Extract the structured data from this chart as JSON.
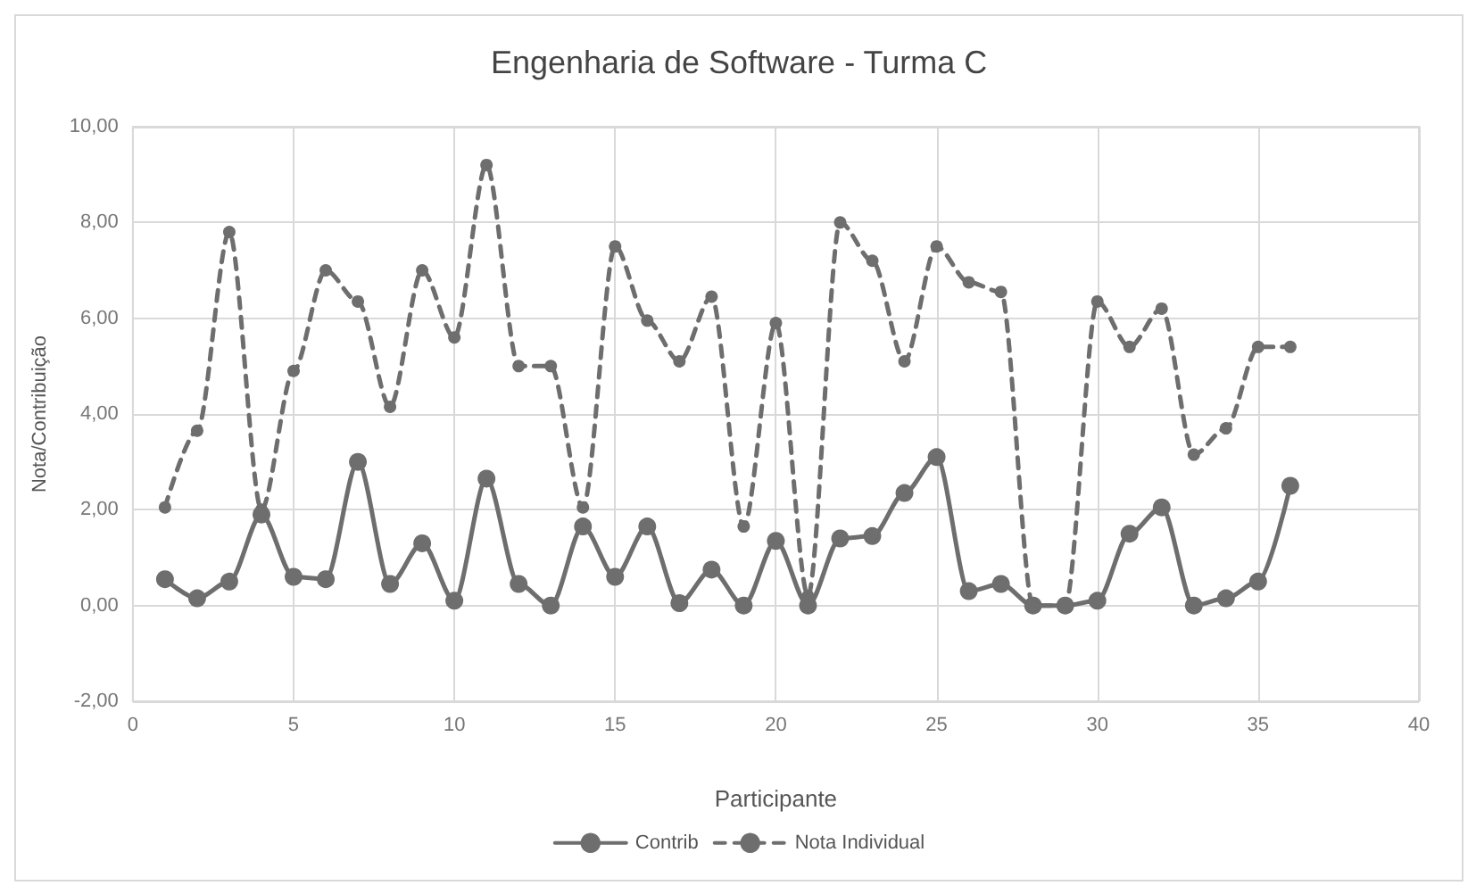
{
  "chart_data": {
    "type": "line",
    "title": "Engenharia de Software - Turma C",
    "xlabel": "Participante",
    "ylabel": "Nota/Contribuição",
    "x": [
      1,
      2,
      3,
      4,
      5,
      6,
      7,
      8,
      9,
      10,
      11,
      12,
      13,
      14,
      15,
      16,
      17,
      18,
      19,
      20,
      21,
      22,
      23,
      24,
      25,
      26,
      27,
      28,
      29,
      30,
      31,
      32,
      33,
      34,
      35,
      36
    ],
    "series": [
      {
        "name": "Contrib",
        "color": "#6e6e6e",
        "line_style": "solid",
        "values": [
          0.55,
          0.15,
          0.5,
          1.9,
          0.6,
          0.55,
          3.0,
          0.45,
          1.3,
          0.1,
          2.65,
          0.45,
          0,
          1.65,
          0.6,
          1.65,
          0.05,
          0.75,
          0,
          1.35,
          0,
          1.4,
          1.45,
          2.35,
          3.1,
          0.3,
          0.45,
          0,
          0,
          0.1,
          1.5,
          2.05,
          0,
          0.15,
          0.5,
          2.5
        ]
      },
      {
        "name": "Nota Individual",
        "color": "#6e6e6e",
        "line_style": "dashed",
        "values": [
          2.05,
          3.65,
          7.8,
          2.0,
          4.9,
          7.0,
          6.35,
          4.15,
          7.0,
          5.6,
          9.2,
          5.0,
          5.0,
          2.05,
          7.5,
          5.95,
          5.1,
          6.45,
          1.65,
          5.9,
          0.2,
          8.0,
          7.2,
          5.1,
          7.5,
          6.75,
          6.55,
          0,
          0,
          6.35,
          5.4,
          6.2,
          3.15,
          3.7,
          5.4,
          5.4
        ]
      }
    ],
    "xlim": [
      0,
      40
    ],
    "xticks": [
      0,
      5,
      10,
      15,
      20,
      25,
      30,
      35,
      40
    ],
    "ylim": [
      -2,
      10
    ],
    "yticks": [
      {
        "value": -2,
        "label": "-2,00"
      },
      {
        "value": 0,
        "label": "0,00"
      },
      {
        "value": 2,
        "label": "2,00"
      },
      {
        "value": 4,
        "label": "4,00"
      },
      {
        "value": 6,
        "label": "6,00"
      },
      {
        "value": 8,
        "label": "8,00"
      },
      {
        "value": 10,
        "label": "10,00"
      }
    ],
    "grid": true,
    "legend": "bottom",
    "marker": "circle"
  }
}
